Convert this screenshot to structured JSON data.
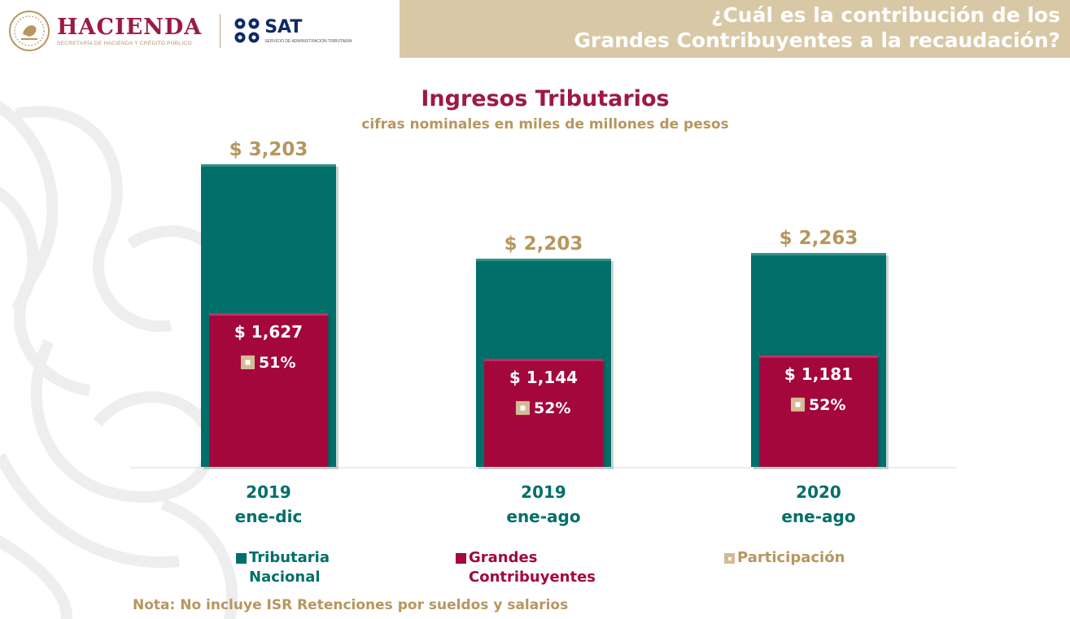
{
  "header": {
    "hacienda_name": "HACIENDA",
    "hacienda_subtitle": "SECRETARÍA DE HACIENDA Y CRÉDITO PÚBLICO",
    "sat_name": "SAT",
    "sat_subtitle": "SERVICIO DE ADMINISTRACIÓN TRIBUTARIA",
    "question_line1": "¿Cuál es la contribución de los",
    "question_line2": "Grandes Contribuyentes a la recaudación?"
  },
  "colors": {
    "tributaria": "#006f6a",
    "grandes": "#a3073c",
    "participacion": "#d4bb95",
    "gold_text": "#b7965f",
    "banner": "#d8c8a6",
    "title": "#9c1a45"
  },
  "chart_data": {
    "type": "bar",
    "title": "Ingresos Tributarios",
    "subtitle": "cifras nominales en miles de millones de pesos",
    "categories": [
      {
        "year": "2019",
        "period": "ene-dic"
      },
      {
        "year": "2019",
        "period": "ene-ago"
      },
      {
        "year": "2020",
        "period": "ene-ago"
      }
    ],
    "series": [
      {
        "name": "Tributaria Nacional",
        "values": [
          3203,
          2203,
          2263
        ],
        "labels": [
          "$ 3,203",
          "$ 2,203",
          "$ 2,263"
        ]
      },
      {
        "name": "Grandes Contribuyentes",
        "values": [
          1627,
          1144,
          1181
        ],
        "labels": [
          "$ 1,627",
          "$ 1,144",
          "$ 1,181"
        ]
      },
      {
        "name": "Participación",
        "values": [
          51,
          52,
          52
        ],
        "labels": [
          "51%",
          "52%",
          "52%"
        ]
      }
    ],
    "ylim": [
      0,
      3203
    ],
    "grid": false,
    "legend_position": "bottom"
  },
  "legend": [
    {
      "line1": "Tributaria",
      "line2": "Nacional"
    },
    {
      "line1": "Grandes",
      "line2": "Contribuyentes"
    },
    {
      "line1": "Participación",
      "line2": ""
    }
  ],
  "note": "Nota: No incluye ISR Retenciones por sueldos y salarios"
}
